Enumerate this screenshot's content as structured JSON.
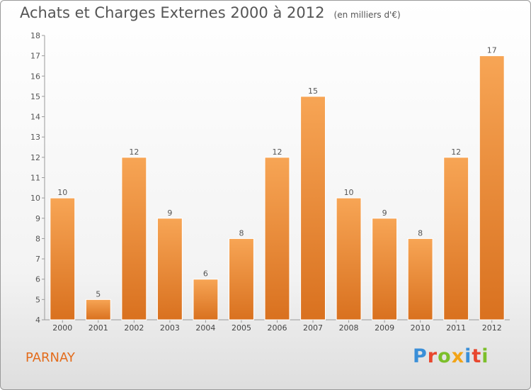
{
  "chart_data": {
    "type": "bar",
    "title": "Achats et Charges Externes 2000 à 2012",
    "subtitle": "(en milliers d'€)",
    "categories": [
      "2000",
      "2001",
      "2002",
      "2003",
      "2004",
      "2005",
      "2006",
      "2007",
      "2008",
      "2009",
      "2010",
      "2011",
      "2012"
    ],
    "values": [
      10,
      5,
      12,
      9,
      6,
      8,
      12,
      15,
      10,
      9,
      8,
      12,
      17
    ],
    "ylim": [
      4,
      18
    ],
    "yticks": [
      4,
      5,
      6,
      7,
      8,
      9,
      10,
      11,
      12,
      13,
      14,
      15,
      16,
      17,
      18
    ],
    "grid": false,
    "bar_color": "#f0913a"
  },
  "commune": "PARNAY",
  "logo": {
    "text": "Proxiti",
    "colors": [
      "#3a8fd8",
      "#e8472e",
      "#7cbf2b",
      "#f2a417",
      "#3a8fd8",
      "#e8472e",
      "#7cbf2b"
    ]
  }
}
